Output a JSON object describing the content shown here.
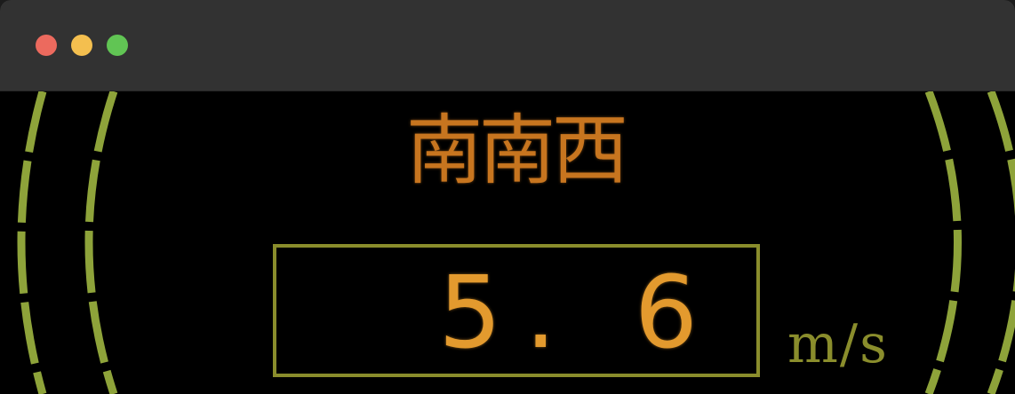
{
  "window": {
    "controls": {
      "close_color": "#ec6a5e",
      "minimize_color": "#f4bf4f",
      "zoom_color": "#61c554"
    }
  },
  "wind": {
    "direction": "南南西",
    "speed": "5.6",
    "speed_display": "5. 6",
    "unit": "m/s"
  },
  "colors": {
    "direction_text": "#c7751f",
    "speed_text": "#e39a2e",
    "gauge_ring": "#8ea33a",
    "box_border": "#8a8d2c"
  }
}
